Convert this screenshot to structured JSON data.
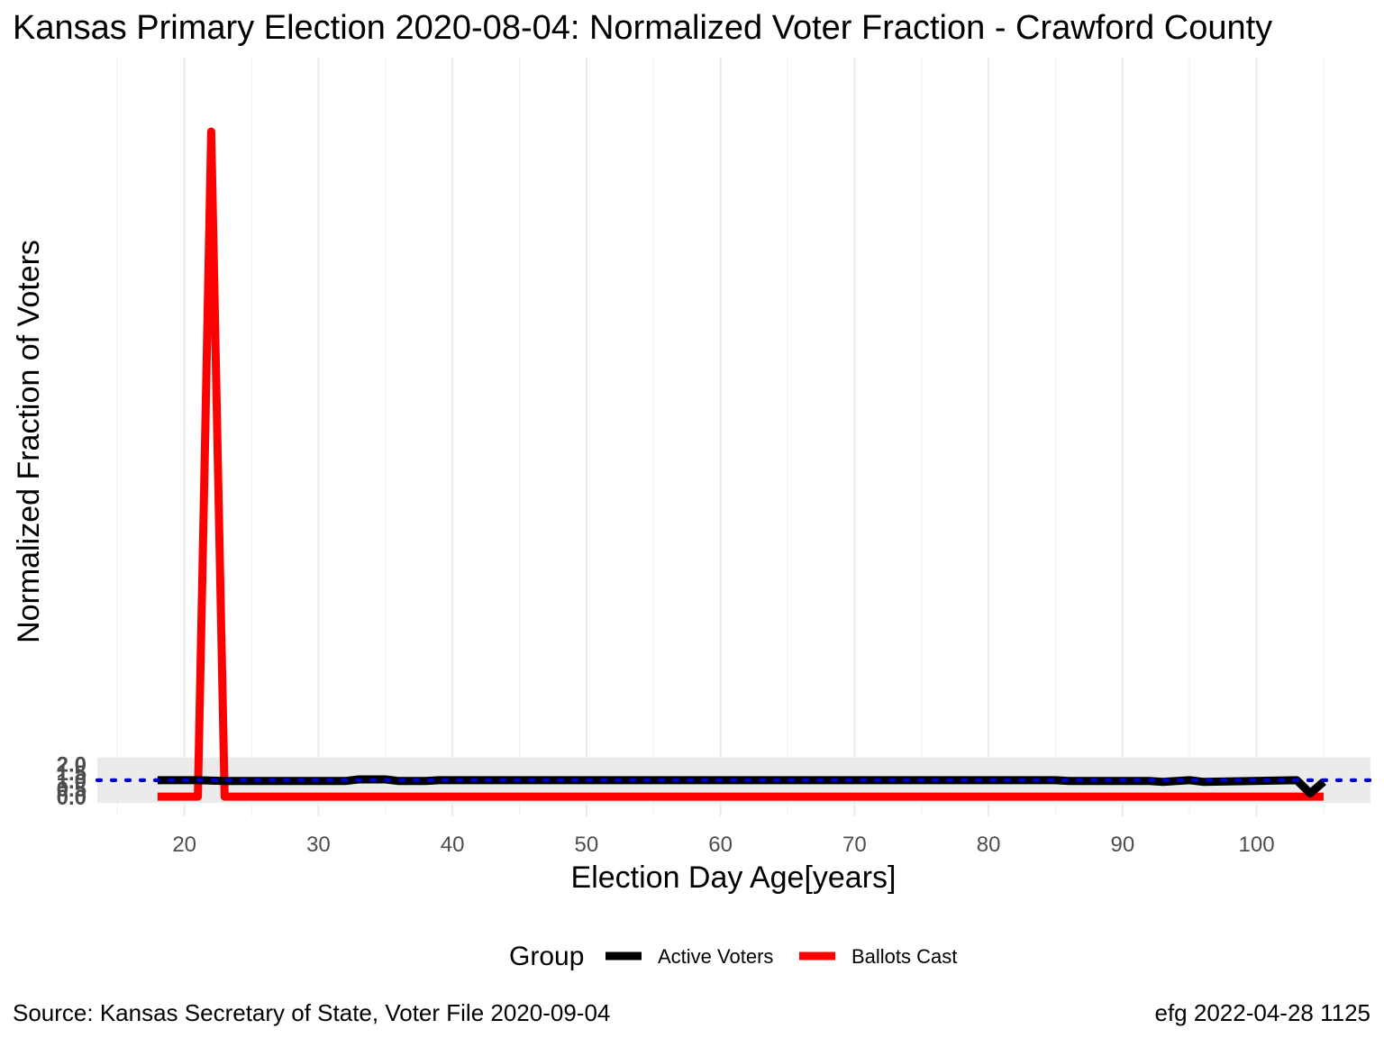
{
  "chart_data": {
    "type": "line",
    "title": "Kansas Primary Election 2020-08-04:  Normalized Voter Fraction - Crawford County",
    "xlabel": "Election Day Age[years]",
    "ylabel": "Normalized Fraction of Voters",
    "x_ticks": [
      "20",
      "30",
      "40",
      "50",
      "60",
      "70",
      "80",
      "90",
      "100"
    ],
    "y_ticks": [
      "0.0",
      "0.5",
      "1.0",
      "1.5",
      "2.0"
    ],
    "xlim": [
      13.5,
      108.5
    ],
    "ylim": [
      -1.2,
      45
    ],
    "grid": true,
    "reference_line": {
      "y": 1.0,
      "style": "dotted",
      "color": "#0000cc"
    },
    "shaded_band": {
      "y": [
        0,
        2
      ],
      "color": "#ebebeb"
    },
    "series": [
      {
        "name": "Active Voters",
        "color": "#000000",
        "x": [
          18,
          21,
          23,
          32,
          33,
          35,
          36,
          38,
          39,
          85,
          86,
          92,
          93,
          95,
          96,
          103,
          104,
          105
        ],
        "y": [
          1.0,
          1.0,
          0.95,
          0.95,
          1.05,
          1.05,
          0.95,
          0.95,
          1.0,
          1.0,
          0.95,
          0.95,
          0.9,
          1.0,
          0.9,
          1.0,
          0.2,
          0.9
        ]
      },
      {
        "name": "Ballots Cast",
        "color": "#ff0000",
        "x": [
          18,
          21,
          21.5,
          22,
          22.5,
          23,
          24,
          105
        ],
        "y": [
          0.0,
          0.0,
          20.0,
          40.5,
          20.0,
          0.0,
          0.0,
          0.0
        ]
      }
    ],
    "legend": {
      "title": "Group",
      "position": "bottom",
      "items": [
        "Active Voters",
        "Ballots Cast"
      ]
    },
    "caption_left": "Source:  Kansas Secretary of State, Voter File  2020-09-04",
    "caption_right": "efg 2022-04-28 1125"
  }
}
